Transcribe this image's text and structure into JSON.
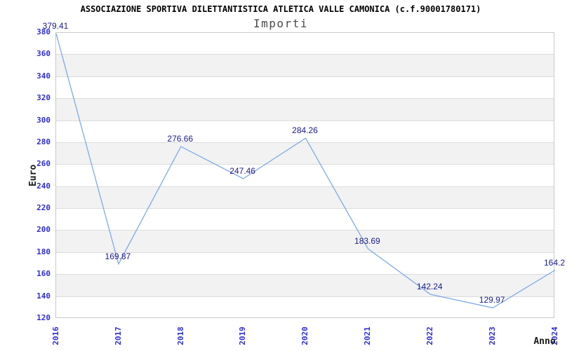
{
  "chart_data": {
    "type": "line",
    "title": "ASSOCIAZIONE SPORTIVA DILETTANTISTICA ATLETICA VALLE CAMONICA (c.f.90001780171)",
    "subtitle": "Importi",
    "xlabel": "Anno",
    "ylabel": "Euro",
    "categories": [
      "2016",
      "2017",
      "2018",
      "2019",
      "2020",
      "2021",
      "2022",
      "2023",
      "2024"
    ],
    "values": [
      379.41,
      169.87,
      276.66,
      247.46,
      284.26,
      183.69,
      142.24,
      129.97,
      164.2
    ],
    "point_labels": [
      "379.41",
      "169.87",
      "276.66",
      "247.46",
      "284.26",
      "183.69",
      "142.24",
      "129.97",
      "164.2"
    ],
    "ylim": [
      120,
      380
    ],
    "ytick_step": 20,
    "grid": "horizontal",
    "legend": "none",
    "background_bands": true,
    "colors": {
      "line": "#7dabea",
      "value_label": "#1a1a8f",
      "tick_label": "#2e2ed8",
      "axis_title": "#1a1a1a",
      "title": "#000000",
      "subtitle": "#4a4a4a",
      "band": "#f2f2f2",
      "gridline": "#dcdcdc",
      "plot_border": "#c9c9c9",
      "background": "#ffffff"
    }
  }
}
